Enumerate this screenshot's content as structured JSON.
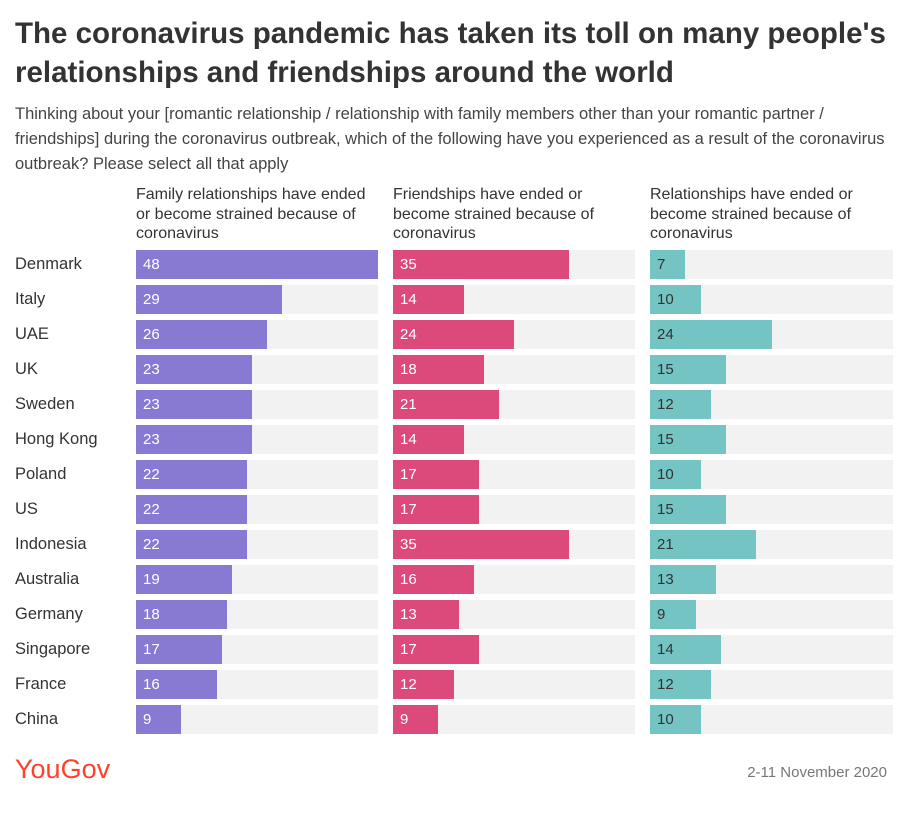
{
  "title": "The coronavirus pandemic has taken its toll on many people's relationships and friendships around the world",
  "subtitle": "Thinking about your [romantic relationship / relationship with family members other than your romantic partner / friendships] during the coronavirus outbreak, which of the following have you experienced as a result of the coronavirus outbreak? Please select all that apply",
  "footer": {
    "logo": "YouGov",
    "date": "2-11 November 2020"
  },
  "chart_data": {
    "type": "bar",
    "orientation": "horizontal",
    "xlim": [
      0,
      48
    ],
    "categories": [
      "Denmark",
      "Italy",
      "UAE",
      "UK",
      "Sweden",
      "Hong Kong",
      "Poland",
      "US",
      "Indonesia",
      "Australia",
      "Germany",
      "Singapore",
      "France",
      "China"
    ],
    "series": [
      {
        "name": "Family relationships have ended or become strained because of coronavirus",
        "color": "#8879d3",
        "text_color": "#ffffff",
        "values": [
          48,
          29,
          26,
          23,
          23,
          23,
          22,
          22,
          22,
          19,
          18,
          17,
          16,
          9
        ]
      },
      {
        "name": "Friendships have ended or become strained because of coronavirus",
        "color": "#dc4a7c",
        "text_color": "#ffffff",
        "values": [
          35,
          14,
          24,
          18,
          21,
          14,
          17,
          17,
          35,
          16,
          13,
          17,
          12,
          9
        ]
      },
      {
        "name": "Relationships have ended or become strained because of coronavirus",
        "color": "#74c4c3",
        "text_color": "#333333",
        "values": [
          7,
          10,
          24,
          15,
          12,
          15,
          10,
          15,
          21,
          13,
          9,
          14,
          12,
          10
        ]
      }
    ]
  }
}
